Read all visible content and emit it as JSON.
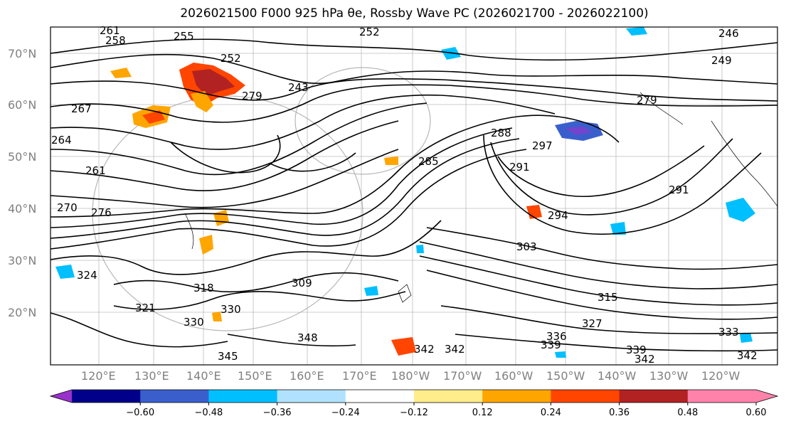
{
  "title": "2026021500 F000 925 hPa θe, Rossby Wave PC (2026021700 - 2026022100)",
  "lat_labels": [
    "70°N",
    "60°N",
    "50°N",
    "40°N",
    "30°N",
    "20°N"
  ],
  "lon_labels": [
    "120°E",
    "130°E",
    "140°E",
    "150°E",
    "160°E",
    "170°E",
    "180°W",
    "170°W",
    "160°W",
    "150°W",
    "140°W",
    "130°W",
    "120°W"
  ],
  "contour_labels": [
    "261",
    "258",
    "255",
    "252",
    "249",
    "246",
    "243",
    "279",
    "267",
    "264",
    "270",
    "276",
    "285",
    "288",
    "291",
    "294",
    "297",
    "303",
    "309",
    "315",
    "318",
    "321",
    "324",
    "327",
    "330",
    "333",
    "336",
    "339",
    "342",
    "345",
    "348"
  ],
  "colorbar": {
    "ticks": [
      "−0.60",
      "−0.48",
      "−0.36",
      "−0.24",
      "−0.12",
      "0.12",
      "0.24",
      "0.36",
      "0.48",
      "0.60"
    ],
    "colors": [
      "#9932cc",
      "#00008b",
      "#3a5fcd",
      "#00bfff",
      "#b0e2ff",
      "#ffffff",
      "#ffec8b",
      "#ffa500",
      "#ff4500",
      "#b22222",
      "#ff82ab",
      "#ff82ab"
    ]
  }
}
